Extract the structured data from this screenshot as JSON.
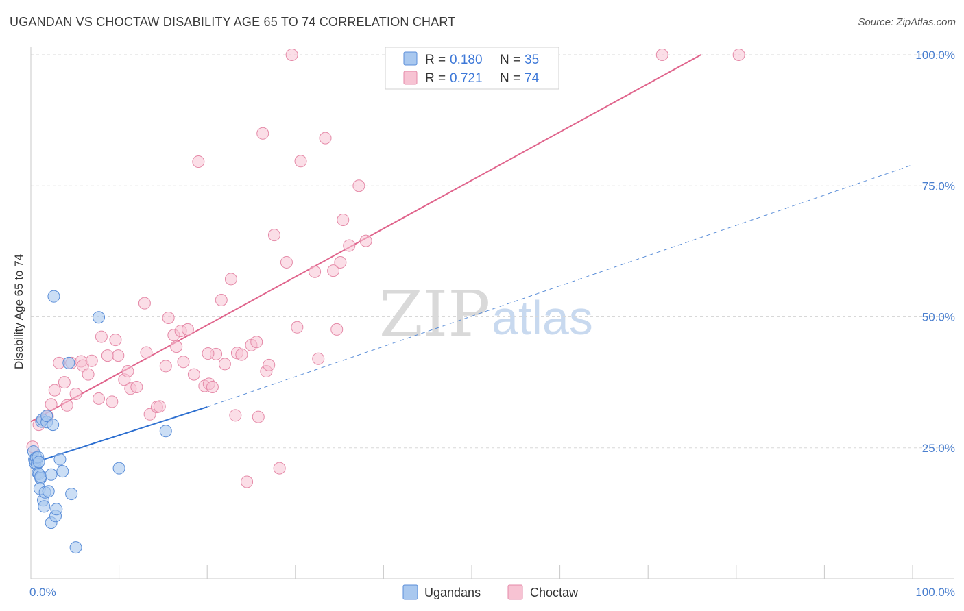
{
  "header": {
    "title": "UGANDAN VS CHOCTAW DISABILITY AGE 65 TO 74 CORRELATION CHART",
    "source": "Source: ZipAtlas.com"
  },
  "watermark": {
    "zip": "ZIP",
    "atlas": "atlas"
  },
  "colors": {
    "ugandans_fill": "#a9c8ef",
    "ugandans_stroke": "#5b8ed8",
    "ugandans_line": "#2d6fd0",
    "choctaw_fill": "#f7c3d3",
    "choctaw_stroke": "#e58aa8",
    "choctaw_line": "#e0648c",
    "grid": "#d8d8d8"
  },
  "legend": {
    "rows": [
      {
        "r_label": "R =",
        "r_value": "0.180",
        "n_label": "N =",
        "n_value": "35"
      },
      {
        "r_label": "R =",
        "r_value": "0.721",
        "n_label": "N =",
        "n_value": "74"
      }
    ]
  },
  "chart_data": {
    "type": "scatter",
    "title": "UGANDAN VS CHOCTAW DISABILITY AGE 65 TO 74 CORRELATION CHART",
    "xlabel": "",
    "ylabel": "Disability Age 65 to 74",
    "xlim": [
      0,
      100
    ],
    "ylim": [
      0,
      100
    ],
    "x_tick_labels": [
      "0.0%",
      "100.0%"
    ],
    "y_tick_labels": [
      "25.0%",
      "50.0%",
      "75.0%",
      "100.0%"
    ],
    "y_ticks": [
      25,
      50,
      75,
      100
    ],
    "series": [
      {
        "name": "Ugandans",
        "r": 0.18,
        "n": 35,
        "trend": {
          "x0": 0,
          "y0": 22.0,
          "x1": 20,
          "y1": 32.8,
          "dashed_to_x": 100,
          "dashed_to_y": 79
        },
        "points": [
          [
            0.3,
            24.3
          ],
          [
            0.4,
            22.8
          ],
          [
            0.5,
            22.0
          ],
          [
            0.5,
            22.5
          ],
          [
            0.6,
            23.1
          ],
          [
            0.7,
            21.9
          ],
          [
            0.8,
            23.2
          ],
          [
            0.8,
            20.2
          ],
          [
            0.9,
            20.0
          ],
          [
            1.0,
            17.2
          ],
          [
            1.1,
            19.2
          ],
          [
            1.1,
            19.5
          ],
          [
            1.2,
            30.0
          ],
          [
            1.3,
            30.4
          ],
          [
            1.4,
            15.0
          ],
          [
            1.5,
            13.8
          ],
          [
            1.6,
            16.5
          ],
          [
            1.8,
            29.9
          ],
          [
            1.8,
            31.1
          ],
          [
            2.0,
            16.7
          ],
          [
            2.3,
            10.7
          ],
          [
            2.3,
            19.9
          ],
          [
            2.5,
            29.4
          ],
          [
            2.6,
            53.9
          ],
          [
            2.8,
            12.0
          ],
          [
            2.9,
            13.3
          ],
          [
            3.3,
            22.8
          ],
          [
            3.6,
            20.5
          ],
          [
            4.3,
            41.2
          ],
          [
            4.6,
            16.2
          ],
          [
            5.1,
            6.0
          ],
          [
            7.7,
            49.9
          ],
          [
            10.0,
            21.1
          ],
          [
            15.3,
            28.2
          ],
          [
            0.9,
            22.3
          ]
        ]
      },
      {
        "name": "Choctaw",
        "r": 0.721,
        "n": 74,
        "trend": {
          "x0": 0,
          "y0": 30.0,
          "x1": 76,
          "y1": 100
        },
        "points": [
          [
            0.2,
            25.2
          ],
          [
            0.9,
            29.4
          ],
          [
            1.9,
            31.0
          ],
          [
            2.3,
            33.3
          ],
          [
            2.7,
            36.0
          ],
          [
            3.2,
            41.2
          ],
          [
            3.8,
            37.5
          ],
          [
            4.1,
            33.1
          ],
          [
            4.6,
            41.2
          ],
          [
            5.1,
            35.3
          ],
          [
            5.7,
            41.5
          ],
          [
            5.9,
            40.7
          ],
          [
            6.5,
            39.0
          ],
          [
            6.9,
            41.6
          ],
          [
            7.7,
            34.4
          ],
          [
            8.0,
            46.2
          ],
          [
            8.7,
            42.6
          ],
          [
            9.2,
            33.8
          ],
          [
            9.6,
            45.6
          ],
          [
            9.9,
            42.6
          ],
          [
            10.6,
            38.0
          ],
          [
            11.0,
            39.6
          ],
          [
            11.3,
            36.3
          ],
          [
            12.0,
            36.6
          ],
          [
            12.9,
            52.6
          ],
          [
            13.1,
            43.2
          ],
          [
            13.5,
            31.4
          ],
          [
            14.3,
            32.8
          ],
          [
            14.6,
            32.9
          ],
          [
            15.3,
            40.6
          ],
          [
            15.6,
            49.8
          ],
          [
            16.2,
            46.5
          ],
          [
            16.5,
            44.3
          ],
          [
            17.0,
            47.3
          ],
          [
            17.3,
            41.4
          ],
          [
            17.8,
            47.6
          ],
          [
            18.5,
            39.0
          ],
          [
            19.0,
            79.6
          ],
          [
            19.7,
            36.8
          ],
          [
            20.2,
            37.2
          ],
          [
            20.6,
            36.6
          ],
          [
            21.0,
            42.9
          ],
          [
            21.6,
            53.2
          ],
          [
            22.0,
            41.0
          ],
          [
            22.7,
            57.2
          ],
          [
            23.2,
            31.2
          ],
          [
            23.4,
            43.1
          ],
          [
            23.9,
            42.8
          ],
          [
            24.5,
            18.5
          ],
          [
            25.0,
            44.6
          ],
          [
            25.8,
            30.9
          ],
          [
            26.3,
            85.0
          ],
          [
            26.7,
            39.6
          ],
          [
            27.0,
            40.8
          ],
          [
            27.6,
            65.6
          ],
          [
            28.2,
            21.1
          ],
          [
            29.0,
            60.4
          ],
          [
            29.6,
            100
          ],
          [
            30.2,
            48.0
          ],
          [
            30.6,
            79.7
          ],
          [
            32.2,
            58.6
          ],
          [
            32.6,
            42.0
          ],
          [
            33.4,
            84.1
          ],
          [
            34.3,
            58.8
          ],
          [
            34.7,
            47.6
          ],
          [
            35.1,
            60.4
          ],
          [
            35.4,
            68.5
          ],
          [
            36.1,
            63.6
          ],
          [
            37.2,
            75.0
          ],
          [
            38.0,
            64.5
          ],
          [
            71.6,
            100
          ],
          [
            80.3,
            100
          ],
          [
            25.6,
            45.2
          ],
          [
            20.1,
            43.0
          ]
        ]
      }
    ]
  },
  "bottom_legend": {
    "ugandans": "Ugandans",
    "choctaw": "Choctaw"
  }
}
